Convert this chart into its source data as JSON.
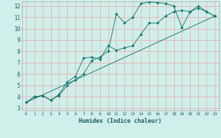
{
  "xlabel": "Humidex (Indice chaleur)",
  "bg_color": "#d0eeea",
  "grid_color": "#e8b0b0",
  "line_color": "#1a7a6e",
  "xlim": [
    -0.5,
    23.5
  ],
  "ylim": [
    2.8,
    12.4
  ],
  "xticks": [
    0,
    1,
    2,
    3,
    4,
    5,
    6,
    7,
    8,
    9,
    10,
    11,
    12,
    13,
    14,
    15,
    16,
    17,
    18,
    19,
    20,
    21,
    22,
    23
  ],
  "yticks": [
    3,
    4,
    5,
    6,
    7,
    8,
    9,
    10,
    11,
    12
  ],
  "line1_x": [
    0,
    1,
    2,
    3,
    4,
    5,
    6,
    7,
    8,
    9,
    10,
    11,
    12,
    13,
    14,
    15,
    16,
    17,
    18,
    19,
    20,
    21,
    22,
    23
  ],
  "line1_y": [
    3.5,
    4.0,
    4.1,
    3.7,
    4.1,
    5.0,
    5.5,
    6.0,
    7.2,
    7.5,
    8.0,
    11.3,
    10.5,
    11.0,
    12.2,
    12.35,
    12.3,
    12.2,
    12.0,
    10.1,
    11.5,
    11.8,
    11.5,
    11.1
  ],
  "line2_x": [
    0,
    1,
    2,
    3,
    4,
    5,
    6,
    7,
    8,
    9,
    10,
    11,
    12,
    13,
    14,
    15,
    16,
    17,
    18,
    19,
    20,
    21,
    22,
    23
  ],
  "line2_y": [
    3.5,
    4.0,
    4.1,
    3.7,
    4.2,
    5.3,
    5.8,
    7.4,
    7.5,
    7.3,
    8.5,
    8.1,
    8.3,
    8.5,
    9.5,
    10.5,
    10.5,
    11.1,
    11.5,
    11.6,
    11.5,
    12.0,
    11.5,
    11.1
  ],
  "line3_x": [
    0,
    23
  ],
  "line3_y": [
    3.5,
    11.1
  ]
}
